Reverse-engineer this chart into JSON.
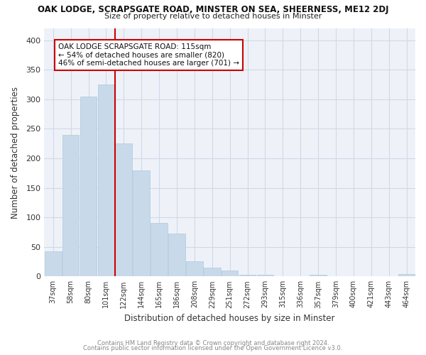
{
  "title": "OAK LODGE, SCRAPSGATE ROAD, MINSTER ON SEA, SHEERNESS, ME12 2DJ",
  "subtitle": "Size of property relative to detached houses in Minster",
  "xlabel": "Distribution of detached houses by size in Minster",
  "ylabel": "Number of detached properties",
  "bar_color": "#c8daea",
  "bar_edge_color": "#b0c8dc",
  "bins": [
    "37sqm",
    "58sqm",
    "80sqm",
    "101sqm",
    "122sqm",
    "144sqm",
    "165sqm",
    "186sqm",
    "208sqm",
    "229sqm",
    "251sqm",
    "272sqm",
    "293sqm",
    "315sqm",
    "336sqm",
    "357sqm",
    "379sqm",
    "400sqm",
    "421sqm",
    "443sqm",
    "464sqm"
  ],
  "values": [
    42,
    240,
    305,
    325,
    225,
    180,
    90,
    73,
    26,
    15,
    10,
    3,
    3,
    0,
    0,
    3,
    0,
    0,
    0,
    0,
    4
  ],
  "red_line_bin_index": 4,
  "ylim": [
    0,
    420
  ],
  "yticks": [
    0,
    50,
    100,
    150,
    200,
    250,
    300,
    350,
    400
  ],
  "annotation_text": "OAK LODGE SCRAPSGATE ROAD: 115sqm\n← 54% of detached houses are smaller (820)\n46% of semi-detached houses are larger (701) →",
  "annotation_box_color": "#ffffff",
  "annotation_edge_color": "#cc0000",
  "footnote1": "Contains HM Land Registry data © Crown copyright and database right 2024.",
  "footnote2": "Contains public sector information licensed under the Open Government Licence v3.0.",
  "grid_color": "#d0d8e8",
  "plot_bg_color": "#eef2f8",
  "fig_bg_color": "#ffffff"
}
